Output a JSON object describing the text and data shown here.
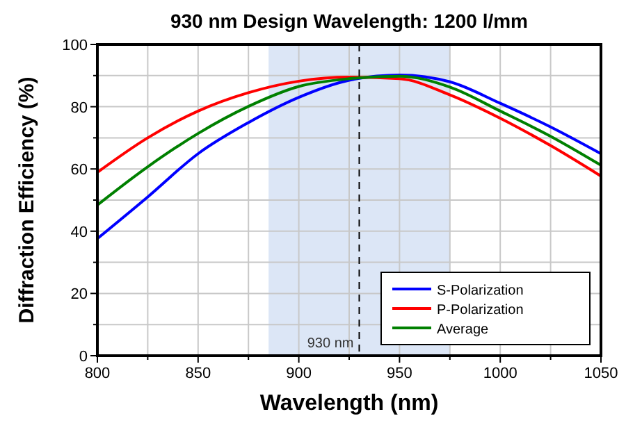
{
  "chart_data": {
    "type": "line",
    "title": "930 nm Design Wavelength: 1200 l/mm",
    "xlabel": "Wavelength (nm)",
    "ylabel": "Diffraction Efficiency (%)",
    "x": [
      800,
      825,
      850,
      875,
      900,
      925,
      950,
      975,
      1000,
      1025,
      1050
    ],
    "series": [
      {
        "name": "S-Polarization",
        "color": "#0000ff",
        "values": [
          37.6,
          51.0,
          64.9,
          74.9,
          83.0,
          88.5,
          90.2,
          88.0,
          81.1,
          73.5,
          64.9
        ]
      },
      {
        "name": "P-Polarization",
        "color": "#ff0000",
        "values": [
          58.9,
          70.0,
          78.6,
          84.5,
          88.2,
          89.5,
          89.0,
          83.8,
          76.3,
          67.5,
          57.7
        ]
      },
      {
        "name": "Average",
        "color": "#008000",
        "values": [
          48.4,
          60.7,
          71.4,
          80.1,
          86.5,
          89.0,
          89.8,
          86.3,
          78.6,
          70.5,
          61.2
        ]
      }
    ],
    "xlim": [
      800,
      1050
    ],
    "ylim": [
      0,
      100
    ],
    "xticks": [
      800,
      {
        "value": 825,
        "label": null
      },
      850,
      {
        "value": 875,
        "label": null
      },
      900,
      {
        "value": 925,
        "label": null
      },
      950,
      {
        "value": 975,
        "label": null
      },
      1000,
      {
        "value": 1025,
        "label": null
      },
      1050
    ],
    "yticks": [
      0,
      {
        "value": 10,
        "label": null
      },
      20,
      {
        "value": 30,
        "label": null
      },
      40,
      {
        "value": 50,
        "label": null
      },
      60,
      {
        "value": 70,
        "label": null
      },
      80,
      {
        "value": 90,
        "label": null
      },
      100
    ],
    "bands": [
      {
        "axis": "x",
        "from": 885,
        "to": 975,
        "color": "#dce6f6"
      }
    ],
    "ref_lines": [
      {
        "axis": "x",
        "value": 930,
        "label": "930 nm",
        "line_style": "dashed"
      }
    ],
    "grid": true,
    "legend": "bottom right",
    "line_style": "solid",
    "marker": "none"
  }
}
